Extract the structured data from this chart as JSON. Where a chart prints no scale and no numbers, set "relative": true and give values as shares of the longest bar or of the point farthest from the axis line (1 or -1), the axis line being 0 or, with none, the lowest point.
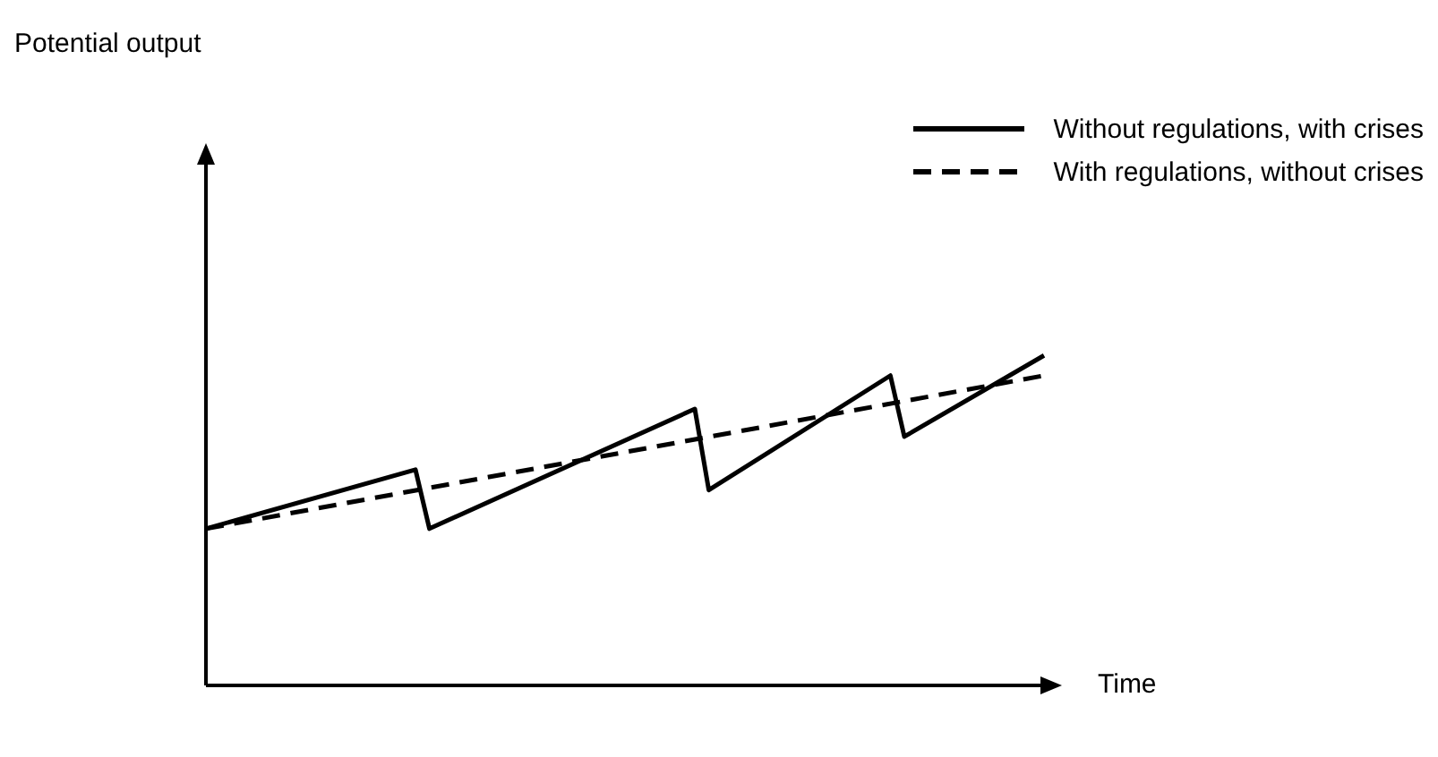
{
  "chart_data": {
    "type": "line",
    "relative": true,
    "annotations": [
      "Potential output"
    ],
    "xlabel": "Time",
    "legend": "top right",
    "marker": "none",
    "categories": [
      null,
      null,
      null,
      null,
      null,
      null,
      null,
      null,
      null,
      null,
      null,
      null,
      null,
      null,
      null,
      null,
      null,
      null,
      null,
      null,
      null,
      null,
      null,
      null,
      null,
      null,
      null,
      null,
      null,
      null,
      null,
      null,
      null,
      null,
      null,
      null,
      null,
      null,
      null,
      null,
      null,
      null,
      null,
      null,
      null,
      null,
      null,
      null,
      null,
      null,
      null,
      null,
      null,
      null,
      null,
      null,
      null,
      null,
      null,
      null,
      null
    ],
    "series": [
      {
        "name": "Without regulations, with crises",
        "color": "#000000",
        "line_style": "solid",
        "values": [
          0.475,
          null,
          null,
          null,
          null,
          null,
          null,
          null,
          null,
          null,
          null,
          null,
          null,
          null,
          null,
          0.654,
          0.475,
          null,
          null,
          null,
          null,
          null,
          null,
          null,
          null,
          null,
          null,
          null,
          null,
          null,
          null,
          null,
          null,
          null,
          null,
          0.838,
          0.592,
          null,
          null,
          null,
          null,
          null,
          null,
          null,
          null,
          null,
          null,
          null,
          null,
          0.939,
          0.754,
          null,
          null,
          null,
          null,
          null,
          null,
          null,
          null,
          null,
          1
        ]
      },
      {
        "name": "With regulations, without crises",
        "color": "#000000",
        "line_style": "dashed",
        "values": [
          0.475,
          null,
          null,
          null,
          null,
          null,
          null,
          null,
          null,
          null,
          null,
          null,
          null,
          null,
          null,
          null,
          null,
          null,
          null,
          null,
          null,
          null,
          null,
          null,
          null,
          null,
          null,
          null,
          null,
          null,
          null,
          null,
          null,
          null,
          null,
          null,
          null,
          null,
          null,
          null,
          null,
          null,
          null,
          null,
          null,
          null,
          null,
          null,
          null,
          null,
          null,
          null,
          null,
          null,
          null,
          null,
          null,
          null,
          null,
          null,
          0.939
        ]
      }
    ]
  }
}
